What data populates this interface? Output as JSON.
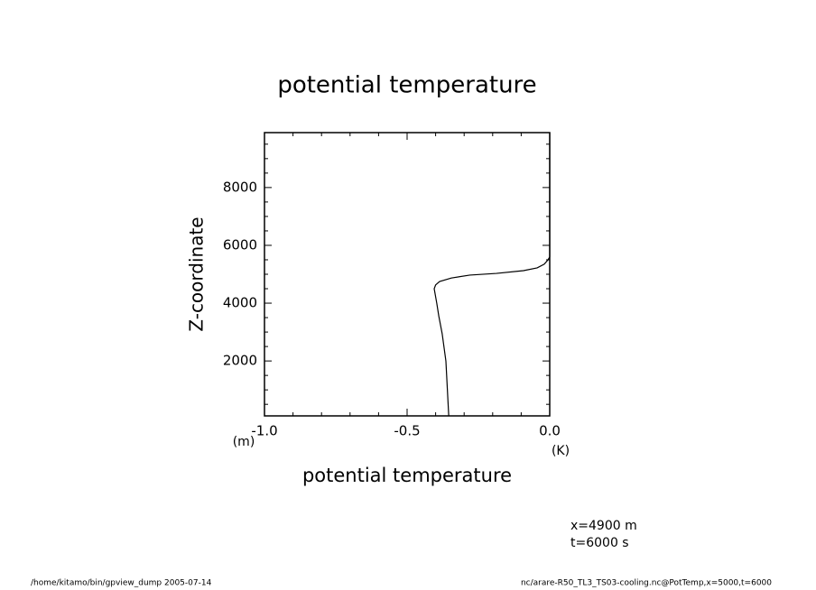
{
  "chart_data": {
    "type": "line",
    "title": "potential temperature",
    "xlabel": "potential temperature",
    "ylabel": "Z-coordinate",
    "xunit": "(K)",
    "yunit": "(m)",
    "annotations": [
      "x=4900 m",
      "t=6000 s"
    ],
    "footer_left": "/home/kitamo/bin/gpview_dump  2005-07-14",
    "footer_right": "nc/arare-R50_TL3_TS03-cooling.nc@PotTemp,x=5000,t=6000",
    "x": [
      -0.354,
      -0.364,
      -0.377,
      -0.389,
      -0.396,
      -0.405,
      -0.4,
      -0.386,
      -0.345,
      -0.28,
      -0.187,
      -0.092,
      -0.044,
      -0.019,
      -0.006,
      0.0,
      0.0
    ],
    "values": [
      100,
      2000,
      2940,
      3560,
      4000,
      4500,
      4630,
      4750,
      4870,
      4970,
      5030,
      5125,
      5220,
      5350,
      5500,
      5600,
      9900
    ],
    "color": "#000000",
    "xlim": [
      -1.0,
      0.0
    ],
    "ylim": [
      100,
      9900
    ],
    "xticks": [
      {
        "value": -1.0,
        "label": "-1.0"
      },
      {
        "value": -0.5,
        "label": "-0.5"
      },
      {
        "value": 0.0,
        "label": "0.0"
      }
    ],
    "yticks": [
      2000,
      4000,
      6000,
      8000
    ],
    "xminorticks": [
      -0.9,
      -0.8,
      -0.7,
      -0.6,
      -0.4,
      -0.3,
      -0.2,
      -0.1
    ],
    "yminorticks": [
      500,
      1000,
      1500,
      2500,
      3000,
      3500,
      4500,
      5000,
      5500,
      6500,
      7000,
      7500,
      8500,
      9000,
      9500
    ]
  }
}
